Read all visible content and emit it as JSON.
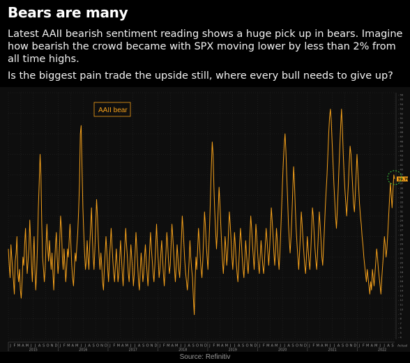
{
  "header": {
    "title": "Bears are many",
    "paragraph1": "Latest AAII bearish sentiment reading shows a huge pick up in bears. Imagine how bearish the crowd became with SPX moving lower by less than 2% from all time highs.",
    "paragraph2": "Is the biggest pain trade the upside still, where every bull needs to give up?"
  },
  "source": "Source: Refinitiv",
  "chart_data": {
    "type": "line",
    "legend": [
      "AAII bear"
    ],
    "legend_position": "top-left",
    "series": [
      {
        "name": "AAII bear",
        "color": "#f7a21b",
        "x_range": [
          2014.0,
          2021.75
        ],
        "values": [
          32,
          28,
          25,
          33,
          30,
          27,
          24,
          21,
          29,
          31,
          35,
          26,
          24,
          27,
          22,
          20,
          24,
          30,
          28,
          33,
          37,
          31,
          26,
          29,
          32,
          39,
          34,
          28,
          24,
          30,
          35,
          27,
          22,
          26,
          33,
          42,
          48,
          55,
          50,
          38,
          30,
          27,
          24,
          27,
          33,
          38,
          32,
          29,
          34,
          30,
          27,
          31,
          26,
          22,
          28,
          33,
          36,
          30,
          26,
          29,
          34,
          40,
          37,
          30,
          27,
          32,
          28,
          24,
          27,
          32,
          30,
          34,
          38,
          33,
          28,
          25,
          23,
          27,
          31,
          29,
          33,
          36,
          41,
          48,
          60,
          62,
          52,
          42,
          36,
          31,
          27,
          29,
          34,
          30,
          27,
          33,
          37,
          42,
          35,
          30,
          27,
          32,
          38,
          44,
          40,
          34,
          30,
          27,
          31,
          28,
          24,
          22,
          27,
          31,
          35,
          31,
          27,
          24,
          29,
          33,
          37,
          33,
          29,
          26,
          24,
          28,
          32,
          28,
          24,
          26,
          30,
          34,
          30,
          26,
          23,
          28,
          33,
          37,
          33,
          30,
          26,
          24,
          28,
          33,
          30,
          27,
          23,
          26,
          31,
          36,
          32,
          28,
          24,
          22,
          27,
          31,
          28,
          24,
          26,
          30,
          33,
          29,
          26,
          23,
          27,
          32,
          36,
          32,
          29,
          26,
          24,
          28,
          33,
          38,
          33,
          29,
          25,
          27,
          31,
          34,
          30,
          26,
          23,
          27,
          31,
          36,
          33,
          29,
          26,
          28,
          33,
          38,
          35,
          31,
          27,
          24,
          28,
          33,
          30,
          27,
          25,
          29,
          34,
          40,
          37,
          33,
          29,
          26,
          24,
          22,
          25,
          29,
          34,
          30,
          27,
          25,
          20,
          16,
          24,
          30,
          27,
          32,
          37,
          34,
          30,
          27,
          25,
          29,
          35,
          41,
          38,
          33,
          30,
          27,
          32,
          38,
          45,
          52,
          58,
          55,
          47,
          41,
          36,
          32,
          36,
          42,
          47,
          43,
          38,
          33,
          29,
          26,
          30,
          35,
          32,
          28,
          31,
          36,
          41,
          38,
          34,
          30,
          27,
          31,
          36,
          33,
          29,
          26,
          24,
          28,
          33,
          37,
          34,
          30,
          27,
          25,
          29,
          34,
          31,
          28,
          26,
          30,
          35,
          40,
          37,
          33,
          30,
          27,
          32,
          38,
          35,
          31,
          28,
          26,
          30,
          34,
          31,
          28,
          26,
          29,
          33,
          37,
          34,
          31,
          28,
          32,
          37,
          42,
          39,
          35,
          31,
          28,
          32,
          37,
          34,
          30,
          27,
          31,
          36,
          42,
          48,
          53,
          57,
          60,
          56,
          50,
          44,
          38,
          34,
          31,
          35,
          40,
          46,
          52,
          48,
          42,
          37,
          33,
          30,
          27,
          31,
          36,
          41,
          38,
          34,
          31,
          28,
          26,
          30,
          35,
          32,
          29,
          27,
          31,
          36,
          42,
          40,
          36,
          32,
          29,
          27,
          31,
          36,
          41,
          38,
          34,
          30,
          28,
          32,
          37,
          42,
          46,
          50,
          55,
          60,
          64,
          66,
          63,
          58,
          53,
          48,
          44,
          40,
          37,
          41,
          46,
          52,
          57,
          62,
          66,
          61,
          55,
          50,
          46,
          43,
          40,
          44,
          48,
          53,
          57,
          55,
          51,
          47,
          43,
          41,
          45,
          50,
          55,
          51,
          47,
          43,
          40,
          38,
          35,
          33,
          30,
          28,
          26,
          24,
          27,
          25,
          23,
          21,
          24,
          22,
          27,
          25,
          23,
          26,
          29,
          32,
          30,
          27,
          25,
          23,
          21,
          25,
          28,
          31,
          35,
          33,
          30,
          32,
          36,
          40,
          44,
          48,
          45,
          42,
          46,
          50,
          49
        ],
        "y_range": [
          10,
          70
        ]
      }
    ],
    "x_tick_labels": [
      "2015",
      "2016",
      "2017",
      "2018",
      "2019",
      "2020",
      "2021",
      "2022"
    ],
    "month_letters": [
      "J",
      "F",
      "M",
      "A",
      "M",
      "J",
      "J",
      "A",
      "S",
      "O",
      "N",
      "D"
    ],
    "right_axis_labels": [
      "56",
      "55",
      "54",
      "53",
      "52",
      "51",
      "50",
      "49",
      "48",
      "47",
      "46",
      "45",
      "44",
      "43",
      "42",
      "41",
      "40",
      "39",
      "38",
      "37",
      "36",
      "35",
      "34",
      "33",
      "32",
      "31",
      "30",
      "29",
      "28",
      "27",
      "26",
      "25",
      "24",
      "23",
      "22",
      "21",
      "20",
      "19",
      "18",
      "17",
      "16",
      "15",
      "14",
      "13",
      "12",
      "11",
      "10",
      "9",
      "8",
      "7",
      "6",
      "5",
      "4"
    ],
    "last_value_label": "39.70",
    "axis_unit_label": "Actual",
    "annotation": "green dashed circle highlighting latest reading"
  }
}
